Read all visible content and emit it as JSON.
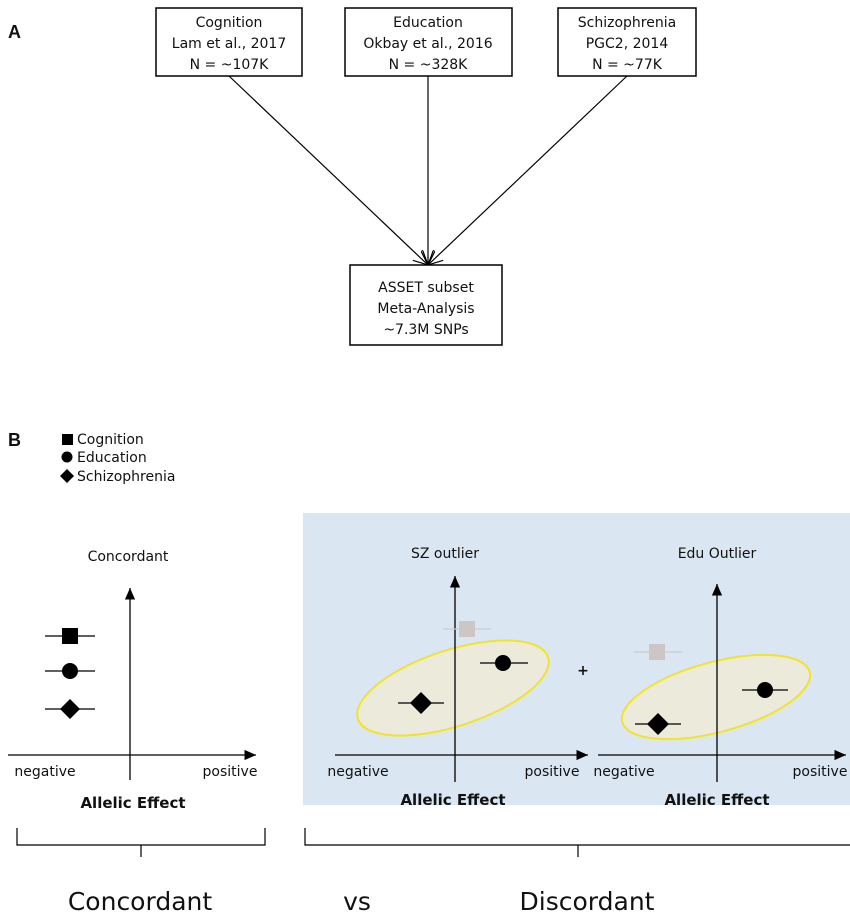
{
  "panel_a": {
    "label": "A",
    "sources": [
      {
        "lines": [
          "Cognition",
          "Lam et al., 2017",
          "N = ~107K"
        ]
      },
      {
        "lines": [
          "Education",
          "Okbay et al., 2016",
          "N = ~328K"
        ]
      },
      {
        "lines": [
          "Schizophrenia",
          "PGC2, 2014",
          "N = ~77K"
        ]
      }
    ],
    "target": {
      "lines": [
        "ASSET subset",
        "Meta-Analysis",
        "~7.3M SNPs"
      ]
    }
  },
  "panel_b": {
    "label": "B",
    "legend": [
      "Cognition",
      "Education",
      "Schizophrenia"
    ],
    "plots": [
      {
        "title": "Concordant",
        "x_negative": "negative",
        "x_positive": "positive",
        "x_label": "Allelic Effect"
      },
      {
        "title": "SZ outlier",
        "x_negative": "negative",
        "x_positive": "positive",
        "x_label": "Allelic Effect"
      },
      {
        "title": "Edu Outlier",
        "x_negative": "negative",
        "x_positive": "positive",
        "x_label": "Allelic Effect"
      }
    ],
    "plus": "+",
    "bottom": [
      "Concordant",
      "vs",
      "Discordant"
    ]
  }
}
